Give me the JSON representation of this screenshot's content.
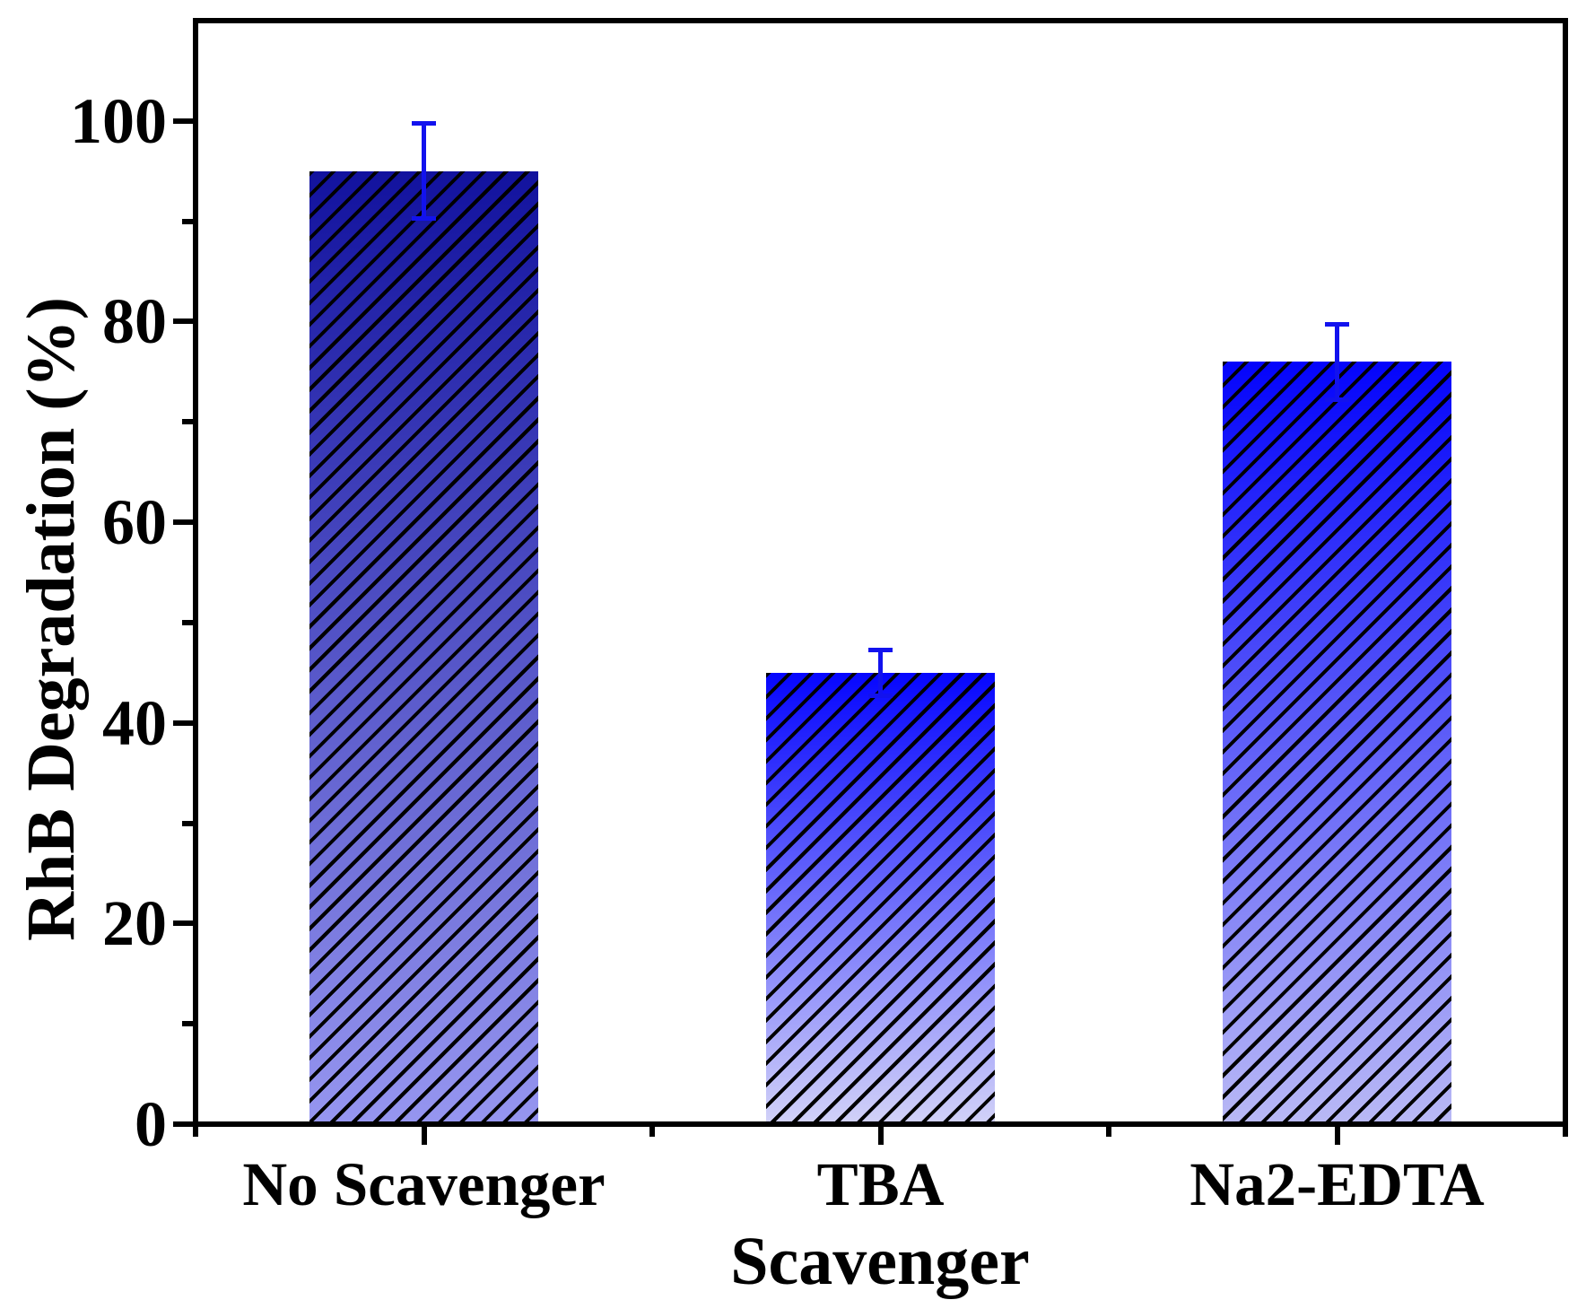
{
  "chart_data": {
    "type": "bar",
    "title": "",
    "xlabel": "Scavenger",
    "ylabel": "RhB Degradation (%)",
    "categories": [
      "No Scavenger",
      "TBA",
      "Na2-EDTA"
    ],
    "values": [
      95,
      45,
      76
    ],
    "errors": [
      4.8,
      2.3,
      3.8
    ],
    "ylim": [
      0,
      110
    ],
    "ytick_major_step": 20,
    "ytick_minor_step": 10,
    "ytick_labels": [
      "0",
      "20",
      "40",
      "60",
      "80",
      "100"
    ],
    "grid": false,
    "legend": false,
    "background_color": "#ffffff",
    "axis_color": "#000000",
    "error_bar_color": "#1212EE",
    "bar_style": {
      "hatch": "diagonal-forward",
      "hatch_color": "#000000",
      "gradients": [
        {
          "top": "#12129E",
          "bottom": "#9696F0"
        },
        {
          "top": "#0606FE",
          "bottom": "#D2D2F8"
        },
        {
          "top": "#0404FB",
          "bottom": "#B9B9F5"
        }
      ]
    }
  }
}
